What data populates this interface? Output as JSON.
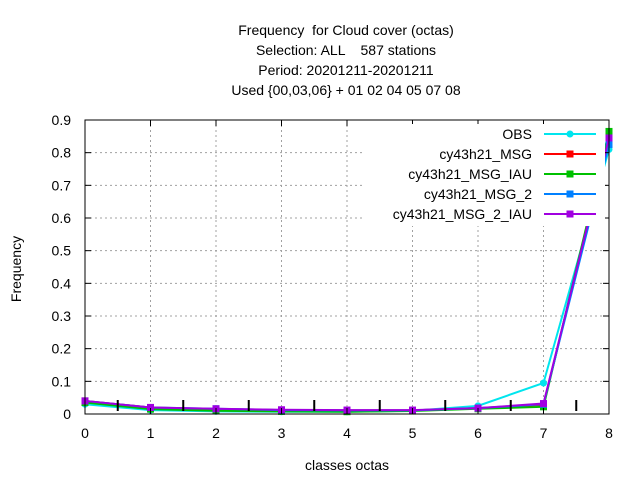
{
  "chart_data": {
    "type": "line",
    "title_lines": [
      "Frequency  for Cloud cover (octas)",
      "Selection: ALL    587 stations",
      "Period: 20201211-20201211",
      "Used {00,03,06} + 01 02 04 05 07 08"
    ],
    "xlabel": "classes octas",
    "ylabel": "Frequency",
    "xlim": [
      0,
      8
    ],
    "ylim": [
      0,
      0.9
    ],
    "xticks": [
      0,
      1,
      2,
      3,
      4,
      5,
      6,
      7,
      8
    ],
    "yticks": [
      0,
      0.1,
      0.2,
      0.3,
      0.4,
      0.5,
      0.6,
      0.7,
      0.8,
      0.9
    ],
    "xtick_labels": [
      "0",
      "1",
      "2",
      "3",
      "4",
      "5",
      "6",
      "7",
      "8"
    ],
    "ytick_labels": [
      "0",
      "0.1",
      "0.2",
      "0.3",
      "0.4",
      "0.5",
      "0.6",
      "0.7",
      "0.8",
      "0.9"
    ],
    "grid": true,
    "legend_position": "top-right",
    "minor_marks_x": [
      0.5,
      1.5,
      2.5,
      3.5,
      4.5,
      5.5,
      6.5,
      7.5
    ],
    "x": [
      0,
      1,
      2,
      3,
      4,
      5,
      6,
      7,
      8
    ],
    "series": [
      {
        "name": "OBS",
        "color": "#00e5ee",
        "marker": "circle",
        "values": [
          0.03,
          0.012,
          0.008,
          0.007,
          0.007,
          0.01,
          0.025,
          0.095,
          0.81
        ]
      },
      {
        "name": "cy43h21_MSG",
        "color": "#ff0000",
        "marker": "square",
        "values": [
          0.04,
          0.02,
          0.015,
          0.012,
          0.011,
          0.011,
          0.018,
          0.028,
          0.845
        ]
      },
      {
        "name": "cy43h21_MSG_IAU",
        "color": "#00c000",
        "marker": "square",
        "values": [
          0.035,
          0.015,
          0.01,
          0.008,
          0.007,
          0.009,
          0.016,
          0.022,
          0.865
        ]
      },
      {
        "name": "cy43h21_MSG_2",
        "color": "#0080ff",
        "marker": "square",
        "values": [
          0.04,
          0.02,
          0.016,
          0.012,
          0.011,
          0.011,
          0.018,
          0.03,
          0.825
        ]
      },
      {
        "name": "cy43h21_MSG_2_IAU",
        "color": "#a000e0",
        "marker": "square",
        "values": [
          0.04,
          0.02,
          0.016,
          0.013,
          0.012,
          0.012,
          0.018,
          0.032,
          0.845
        ]
      }
    ]
  }
}
